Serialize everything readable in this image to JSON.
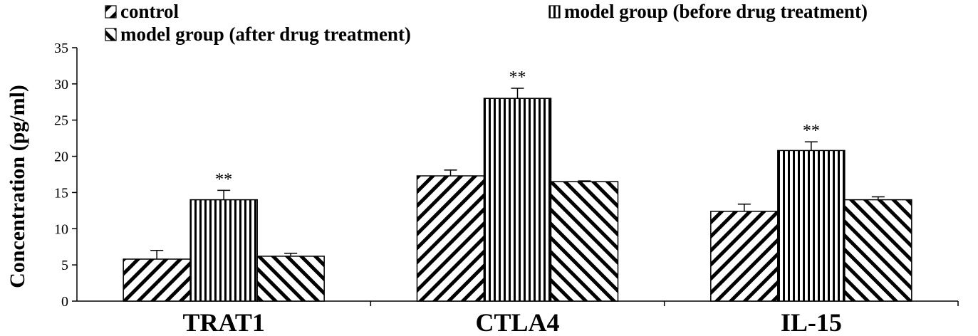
{
  "chart_data": {
    "type": "bar",
    "title": "",
    "xlabel": "",
    "ylabel": "Concentration (pg/ml)",
    "ylim": [
      0,
      35
    ],
    "yticks": [
      0,
      5,
      10,
      15,
      20,
      25,
      30,
      35
    ],
    "categories": [
      "TRAT1",
      "CTLA4",
      "IL-15"
    ],
    "grid": false,
    "legend_position": "top",
    "series": [
      {
        "name": "control",
        "pattern": "diagonal-forward",
        "values": [
          5.8,
          17.3,
          12.4
        ],
        "errors": [
          1.2,
          0.8,
          1.0
        ],
        "annotations": [
          "",
          "",
          ""
        ]
      },
      {
        "name": "model group (before drug treatment)",
        "pattern": "vertical",
        "values": [
          14.0,
          28.0,
          20.8
        ],
        "errors": [
          1.3,
          1.4,
          1.2
        ],
        "annotations": [
          "**",
          "**",
          "**"
        ]
      },
      {
        "name": "model group (after drug treatment)",
        "pattern": "diagonal-backward",
        "values": [
          6.2,
          16.5,
          14.0
        ],
        "errors": [
          0.4,
          0.1,
          0.4
        ],
        "annotations": [
          "",
          "",
          ""
        ]
      }
    ],
    "colors": {
      "ink": "#000000",
      "background": "#ffffff"
    }
  }
}
